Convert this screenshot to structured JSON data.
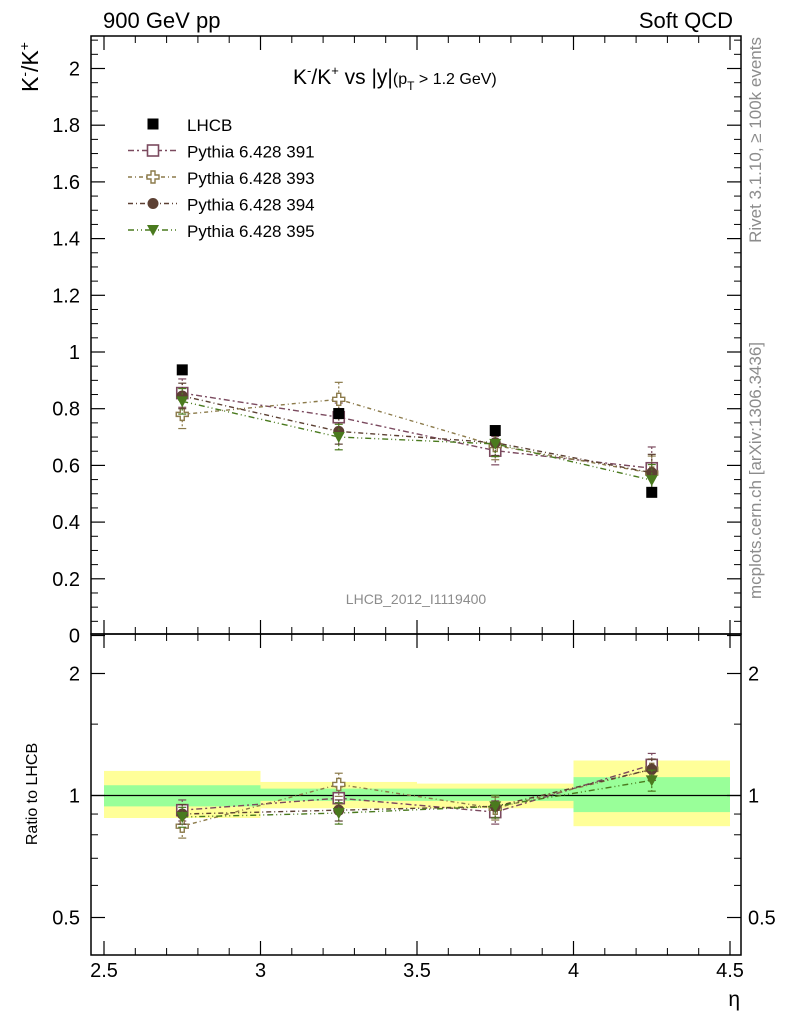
{
  "header": {
    "left": "900 GeV pp",
    "right": "Soft QCD"
  },
  "side_labels": {
    "top": "Rivet 3.1.10, ≥ 100k events",
    "bottom": "mcplots.cern.ch [arXiv:1306.3436]"
  },
  "chart_data": [
    {
      "type": "scatter",
      "title": "K⁻/K⁺ vs |y|(p_T > 1.2 GeV)",
      "title_parts": {
        "main": "K",
        "sup1": "-",
        "slash": "/K",
        "sup2": "+",
        "vs": " vs |y|",
        "sub_open": "(p",
        "sub_T": "T",
        "sub_rest": " > 1.2 GeV)"
      },
      "ylabel": "K⁻/K⁺",
      "ylabel_parts": {
        "a": "K",
        "sup1": "-",
        "b": "/K",
        "sup2": "+"
      },
      "xlim": [
        2.45,
        4.53
      ],
      "ylim": [
        0,
        2.12
      ],
      "yticks": [
        "0",
        "0.2",
        "0.4",
        "0.6",
        "0.8",
        "1",
        "1.2",
        "1.4",
        "1.6",
        "1.8",
        "2"
      ],
      "ytick_values": [
        0,
        0.2,
        0.4,
        0.6,
        0.8,
        1,
        1.2,
        1.4,
        1.6,
        1.8,
        2
      ],
      "watermark": "LHCB_2012_I1119400",
      "legend_position": "top-left",
      "x": [
        2.75,
        3.25,
        3.75,
        4.25
      ],
      "reference": {
        "name": "LHCB",
        "color": "#000000",
        "values": [
          0.937,
          0.783,
          0.723,
          0.505
        ]
      },
      "series": [
        {
          "name": "Pythia 6.428 391",
          "color": "#7b4a5f",
          "marker": "open-square",
          "dash": "6,3,2,3",
          "values": [
            0.855,
            0.77,
            0.652,
            0.59
          ],
          "err": [
            0.05,
            0.05,
            0.05,
            0.075
          ]
        },
        {
          "name": "Pythia 6.428 393",
          "color": "#8b7a4a",
          "marker": "open-cross",
          "dash": "4,3,1,3",
          "values": [
            0.78,
            0.833,
            0.67,
            0.573
          ],
          "err": [
            0.05,
            0.06,
            0.05,
            0.06
          ]
        },
        {
          "name": "Pythia 6.428 394",
          "color": "#5c4033",
          "marker": "filled-circle",
          "dash": "5,3,1,3",
          "values": [
            0.845,
            0.72,
            0.68,
            0.574
          ],
          "err": [
            0.045,
            0.045,
            0.045,
            0.065
          ]
        },
        {
          "name": "Pythia 6.428 395",
          "color": "#4a7a1e",
          "marker": "filled-triangle-down",
          "dash": "6,3,1,3,1,3",
          "values": [
            0.826,
            0.7,
            0.676,
            0.548
          ],
          "err": [
            0.045,
            0.045,
            0.045,
            0.055
          ]
        }
      ]
    },
    {
      "type": "scatter",
      "title": "",
      "ylabel": "Ratio to LHCB",
      "xlabel": "η",
      "log_y": true,
      "ylim": [
        0.38,
        2.4
      ],
      "yticks": [
        "0.5",
        "1",
        "2"
      ],
      "ytick_values": [
        0.5,
        1,
        2
      ],
      "xticks": [
        "2.5",
        "3",
        "3.5",
        "4",
        "4.5"
      ],
      "xtick_values": [
        2.5,
        3,
        3.5,
        4,
        4.5
      ],
      "bins": [
        {
          "lo": 2.5,
          "hi": 3.0,
          "green": [
            0.94,
            1.06
          ],
          "yellow": [
            0.88,
            1.15
          ]
        },
        {
          "lo": 3.0,
          "hi": 3.5,
          "green": [
            0.97,
            1.04
          ],
          "yellow": [
            0.93,
            1.08
          ]
        },
        {
          "lo": 3.5,
          "hi": 4.0,
          "green": [
            0.97,
            1.04
          ],
          "yellow": [
            0.93,
            1.07
          ]
        },
        {
          "lo": 4.0,
          "hi": 4.5,
          "green": [
            0.91,
            1.11
          ],
          "yellow": [
            0.84,
            1.22
          ]
        }
      ],
      "series": [
        {
          "name": "Pythia 6.428 391",
          "values": [
            0.92,
            0.985,
            0.91,
            1.19
          ],
          "err": [
            0.055,
            0.065,
            0.06,
            0.08
          ]
        },
        {
          "name": "Pythia 6.428 393",
          "values": [
            0.84,
            1.065,
            0.93,
            1.16
          ],
          "err": [
            0.055,
            0.07,
            0.06,
            0.07
          ]
        },
        {
          "name": "Pythia 6.428 394",
          "values": [
            0.9,
            0.92,
            0.94,
            1.16
          ],
          "err": [
            0.05,
            0.055,
            0.06,
            0.07
          ]
        },
        {
          "name": "Pythia 6.428 395",
          "values": [
            0.885,
            0.905,
            0.94,
            1.09
          ],
          "err": [
            0.05,
            0.055,
            0.06,
            0.065
          ]
        }
      ]
    }
  ]
}
